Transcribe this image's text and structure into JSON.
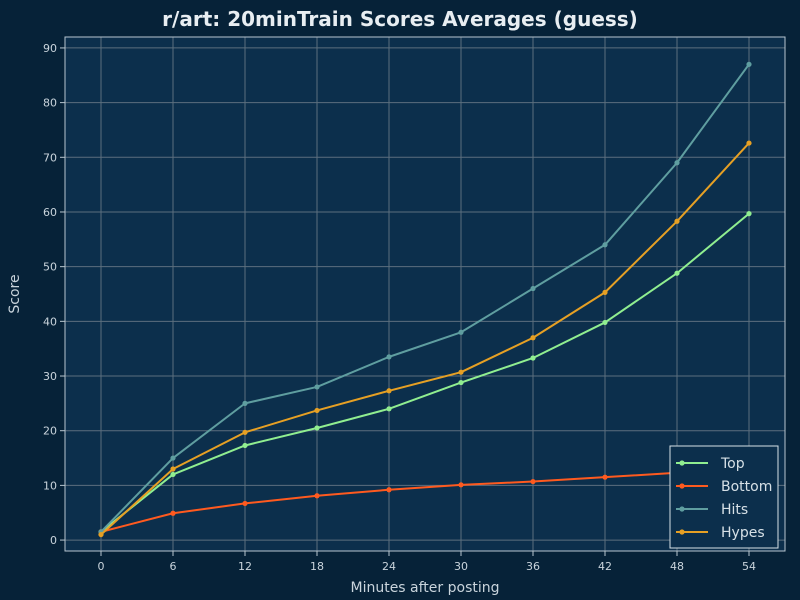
{
  "chart_data": {
    "type": "line",
    "title": "r/art: 20minTrain Scores Averages (guess)",
    "xlabel": "Minutes after posting",
    "ylabel": "Score",
    "x": [
      0,
      6,
      12,
      18,
      24,
      30,
      36,
      42,
      48,
      54
    ],
    "xlim": [
      -3,
      57
    ],
    "ylim": [
      -2,
      92
    ],
    "xticks": [
      0,
      6,
      12,
      18,
      24,
      30,
      36,
      42,
      48,
      54
    ],
    "yticks": [
      0,
      10,
      20,
      30,
      40,
      50,
      60,
      70,
      80,
      90
    ],
    "grid": true,
    "legend_position": "bottom-right",
    "series": [
      {
        "name": "Top",
        "color": "#90ee90",
        "values": [
          1.5,
          12,
          17.3,
          20.5,
          24,
          28.8,
          33.3,
          39.8,
          48.8,
          59.7
        ]
      },
      {
        "name": "Bottom",
        "color": "#ff5a1f",
        "values": [
          1.5,
          4.9,
          6.7,
          8.1,
          9.2,
          10.1,
          10.7,
          11.5,
          12.3,
          13
        ]
      },
      {
        "name": "Hits",
        "color": "#5f9ea0",
        "values": [
          1.5,
          15,
          25,
          28,
          33.5,
          38,
          46,
          54,
          69,
          87
        ]
      },
      {
        "name": "Hypes",
        "color": "#e6a024",
        "values": [
          1,
          13,
          19.7,
          23.7,
          27.3,
          30.7,
          37,
          45.3,
          58.3,
          72.6
        ]
      }
    ]
  },
  "colors": {
    "background": "#062238",
    "plot_background": "#0c2f4c",
    "grid": "#5c6f7e",
    "axis": "#b8c6cf"
  }
}
